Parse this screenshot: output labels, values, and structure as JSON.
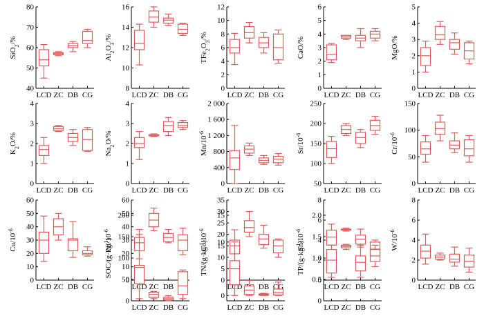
{
  "colors": {
    "box": "#e05a5a",
    "axis": "#000000"
  },
  "categories": [
    "LCD",
    "ZC",
    "DB",
    "CG"
  ],
  "chart_data": [
    {
      "type": "box",
      "ylabel": "SiO2/%",
      "ylim": [
        40,
        80
      ],
      "yticks": [
        "40",
        "50",
        "60",
        "70",
        "80"
      ],
      "boxes": [
        {
          "min": 45,
          "q1": 51,
          "med": 54,
          "q3": 59,
          "max": 61.5
        },
        {
          "min": 56,
          "q1": 56.5,
          "med": 57,
          "q3": 57.5,
          "max": 58
        },
        {
          "min": 58,
          "q1": 60,
          "med": 61,
          "q3": 62,
          "max": 63
        },
        {
          "min": 60,
          "q1": 62,
          "med": 63.5,
          "q3": 68,
          "max": 69
        }
      ]
    },
    {
      "type": "box",
      "ylabel": "Al2O3/%",
      "ylim": [
        8,
        16
      ],
      "yticks": [
        "8",
        "10",
        "12",
        "14",
        "16"
      ],
      "boxes": [
        {
          "min": 10.3,
          "q1": 11.8,
          "med": 12.4,
          "q3": 13.7,
          "max": 14.3
        },
        {
          "min": 14,
          "q1": 14.5,
          "med": 15,
          "q3": 15.6,
          "max": 16
        },
        {
          "min": 14.2,
          "q1": 14.4,
          "med": 14.7,
          "q3": 14.9,
          "max": 15.3
        },
        {
          "min": 13.2,
          "q1": 13.4,
          "med": 13.8,
          "q3": 14.3,
          "max": 14.4
        }
      ]
    },
    {
      "type": "box",
      "ylabel": "TFe2O3/%",
      "ylim": [
        0,
        12
      ],
      "yticks": [
        "0",
        "2",
        "4",
        "6",
        "8",
        "10",
        "12"
      ],
      "boxes": [
        {
          "min": 3.5,
          "q1": 5.2,
          "med": 6,
          "q3": 7.2,
          "max": 8.1
        },
        {
          "min": 6.7,
          "q1": 7.4,
          "med": 8.2,
          "q3": 9.1,
          "max": 9.7
        },
        {
          "min": 5.2,
          "q1": 6,
          "med": 6.7,
          "q3": 7.5,
          "max": 8.2
        },
        {
          "min": 3.7,
          "q1": 4.2,
          "med": 6,
          "q3": 8,
          "max": 8.6
        }
      ]
    },
    {
      "type": "box",
      "ylabel": "CaO/%",
      "ylim": [
        0,
        6
      ],
      "yticks": [
        "0",
        "1",
        "2",
        "3",
        "4",
        "5",
        "6"
      ],
      "boxes": [
        {
          "min": 1.9,
          "q1": 2.1,
          "med": 2.5,
          "q3": 3.2,
          "max": 3.3
        },
        {
          "min": 3.6,
          "q1": 3.7,
          "med": 3.8,
          "q3": 3.9,
          "max": 3.9
        },
        {
          "min": 3,
          "q1": 3.5,
          "med": 3.7,
          "q3": 3.9,
          "max": 4.4
        },
        {
          "min": 3.5,
          "q1": 3.7,
          "med": 4,
          "q3": 4.2,
          "max": 4.4
        }
      ]
    },
    {
      "type": "box",
      "ylabel": "MgO/%",
      "ylim": [
        0,
        5
      ],
      "yticks": [
        "0",
        "1",
        "2",
        "3",
        "4",
        "5"
      ],
      "boxes": [
        {
          "min": 1,
          "q1": 1.4,
          "med": 2,
          "q3": 2.5,
          "max": 2.9
        },
        {
          "min": 2.7,
          "q1": 3,
          "med": 3.3,
          "q3": 3.8,
          "max": 4.1
        },
        {
          "min": 2.1,
          "q1": 2.4,
          "med": 2.8,
          "q3": 3,
          "max": 3.4
        },
        {
          "min": 1.5,
          "q1": 1.8,
          "med": 2.3,
          "q3": 2.8,
          "max": 2.9
        }
      ]
    },
    {
      "type": "box",
      "ylabel": "K2O/%",
      "ylim": [
        0,
        4
      ],
      "yticks": [
        "0",
        "1",
        "2",
        "3",
        "4"
      ],
      "boxes": [
        {
          "min": 1,
          "q1": 1.4,
          "med": 1.7,
          "q3": 1.9,
          "max": 2.3
        },
        {
          "min": 2.6,
          "q1": 2.65,
          "med": 2.75,
          "q3": 2.85,
          "max": 2.9
        },
        {
          "min": 1.9,
          "q1": 2.1,
          "med": 2.3,
          "q3": 2.5,
          "max": 2.7
        },
        {
          "min": 1.6,
          "q1": 1.65,
          "med": 2.2,
          "q3": 2.7,
          "max": 2.8
        }
      ]
    },
    {
      "type": "box",
      "ylabel": "Na2O/%",
      "ylim": [
        0,
        4
      ],
      "yticks": [
        "0",
        "1",
        "2",
        "3",
        "4"
      ],
      "boxes": [
        {
          "min": 1.2,
          "q1": 1.8,
          "med": 2,
          "q3": 2.3,
          "max": 2.6
        },
        {
          "min": 2.35,
          "q1": 2.38,
          "med": 2.4,
          "q3": 2.45,
          "max": 2.48
        },
        {
          "min": 2.4,
          "q1": 2.6,
          "med": 2.9,
          "q3": 3.1,
          "max": 3.3
        },
        {
          "min": 2.7,
          "q1": 2.8,
          "med": 2.9,
          "q3": 3.05,
          "max": 3.15
        }
      ]
    },
    {
      "type": "box",
      "ylabel": "Mn/10^-6",
      "ylim": [
        0,
        2000
      ],
      "yticks": [
        "0",
        "400",
        "800",
        "1 200",
        "1 600",
        "2 000"
      ],
      "boxes": [
        {
          "min": 0,
          "q1": 350,
          "med": 640,
          "q3": 820,
          "max": 1450
        },
        {
          "min": 700,
          "q1": 760,
          "med": 860,
          "q3": 940,
          "max": 1010
        },
        {
          "min": 480,
          "q1": 520,
          "med": 580,
          "q3": 640,
          "max": 700
        },
        {
          "min": 460,
          "q1": 520,
          "med": 610,
          "q3": 680,
          "max": 750
        }
      ]
    },
    {
      "type": "box",
      "ylabel": "Sr/10^-6",
      "ylim": [
        50,
        250
      ],
      "yticks": [
        "50",
        "100",
        "150",
        "200",
        "250"
      ],
      "boxes": [
        {
          "min": 100,
          "q1": 115,
          "med": 137,
          "q3": 155,
          "max": 168
        },
        {
          "min": 170,
          "q1": 175,
          "med": 185,
          "q3": 195,
          "max": 200
        },
        {
          "min": 140,
          "q1": 150,
          "med": 165,
          "q3": 178,
          "max": 185
        },
        {
          "min": 173,
          "q1": 183,
          "med": 195,
          "q3": 208,
          "max": 218
        }
      ]
    },
    {
      "type": "box",
      "ylabel": "Cr/10^-6",
      "ylim": [
        0,
        150
      ],
      "yticks": [
        "0",
        "50",
        "100",
        "150"
      ],
      "boxes": [
        {
          "min": 40,
          "q1": 55,
          "med": 65,
          "q3": 78,
          "max": 90
        },
        {
          "min": 80,
          "q1": 92,
          "med": 103,
          "q3": 115,
          "max": 128
        },
        {
          "min": 58,
          "q1": 65,
          "med": 72,
          "q3": 80,
          "max": 95
        },
        {
          "min": 40,
          "q1": 52,
          "med": 65,
          "q3": 82,
          "max": 90
        }
      ]
    },
    {
      "type": "box",
      "ylabel": "Cu/10^-6",
      "ylim": [
        0,
        60
      ],
      "yticks": [
        "0",
        "10",
        "20",
        "30",
        "40",
        "50",
        "60"
      ],
      "boxes": [
        {
          "min": 14,
          "q1": 20,
          "med": 30,
          "q3": 36,
          "max": 48
        },
        {
          "min": 30,
          "q1": 34,
          "med": 40,
          "q3": 46,
          "max": 50
        },
        {
          "min": 17,
          "q1": 22,
          "med": 30,
          "q3": 31,
          "max": 44
        },
        {
          "min": 18,
          "q1": 19,
          "med": 20,
          "q3": 22,
          "max": 25
        }
      ]
    },
    {
      "type": "box",
      "ylabel": "Ni/10^-6",
      "ylim": [
        0,
        60
      ],
      "yticks": [
        "0",
        "10",
        "20",
        "30",
        "40",
        "50",
        "60"
      ],
      "boxes": [
        {
          "min": 16,
          "q1": 22,
          "med": 28,
          "q3": 32,
          "max": 38
        },
        {
          "min": 37,
          "q1": 40,
          "med": 45,
          "q3": 50,
          "max": 54
        },
        {
          "min": 28,
          "q1": 29,
          "med": 32,
          "q3": 35,
          "max": 38
        },
        {
          "min": 19,
          "q1": 22,
          "med": 30,
          "q3": 34,
          "max": 39
        }
      ]
    },
    {
      "type": "box",
      "ylabel": "Co/10^-6",
      "ylim": [
        0,
        35
      ],
      "yticks": [
        "0",
        "5",
        "10",
        "15",
        "20",
        "25",
        "30",
        "35"
      ],
      "boxes": [
        {
          "min": 8,
          "q1": 11.5,
          "med": 15,
          "q3": 17.5,
          "max": 22
        },
        {
          "min": 19,
          "q1": 21,
          "med": 23,
          "q3": 26,
          "max": 30
        },
        {
          "min": 14,
          "q1": 15.5,
          "med": 18,
          "q3": 20,
          "max": 24
        },
        {
          "min": 10,
          "q1": 12,
          "med": 15,
          "q3": 17.5,
          "max": 18
        }
      ]
    },
    {
      "type": "box",
      "ylabel": "Sn/10^-6",
      "ylim": [
        0,
        8
      ],
      "yticks": [
        "0",
        "2",
        "4",
        "6",
        "8"
      ],
      "boxes": [
        {
          "min": 2.6,
          "q1": 3.5,
          "med": 4.3,
          "q3": 5,
          "max": 5.6
        },
        {
          "min": 4.9,
          "q1": 5,
          "med": 5.05,
          "q3": 5.1,
          "max": 5.2
        },
        {
          "min": 3.3,
          "q1": 3.6,
          "med": 4.1,
          "q3": 4.5,
          "max": 5.1
        },
        {
          "min": 2.2,
          "q1": 2.5,
          "med": 3.1,
          "q3": 3.8,
          "max": 4
        }
      ]
    },
    {
      "type": "box",
      "ylabel": "W/10^-6",
      "ylim": [
        0,
        8
      ],
      "yticks": [
        "0",
        "2",
        "4",
        "6",
        "8"
      ],
      "boxes": [
        {
          "min": 1.6,
          "q1": 2.2,
          "med": 2.9,
          "q3": 3.5,
          "max": 4.6
        },
        {
          "min": 2,
          "q1": 2.1,
          "med": 2.3,
          "q3": 2.5,
          "max": 2.7
        },
        {
          "min": 1.4,
          "q1": 1.8,
          "med": 2.1,
          "q3": 2.6,
          "max": 3.3
        },
        {
          "min": 0.8,
          "q1": 1.3,
          "med": 1.9,
          "q3": 2.5,
          "max": 3.2
        }
      ]
    },
    {
      "type": "box",
      "ylabel": "SOC/(g·kg^-1)",
      "ylim": [
        0,
        200
      ],
      "yticks": [
        "0",
        "50",
        "100",
        "150",
        "200"
      ],
      "boxes": [
        {
          "min": 5,
          "q1": 40,
          "med": 78,
          "q3": 83,
          "max": 155
        },
        {
          "min": 5,
          "q1": 8,
          "med": 15,
          "q3": 20,
          "max": 22
        },
        {
          "min": 0,
          "q1": 2,
          "med": 5,
          "q3": 8,
          "max": 12
        },
        {
          "min": 5,
          "q1": 15,
          "med": 35,
          "q3": 68,
          "max": 72
        }
      ]
    },
    {
      "type": "box",
      "ylabel": "TN/(g·kg^-1)",
      "ylim": [
        -1,
        15
      ],
      "yticks": [
        "0",
        "5",
        "10",
        "15"
      ],
      "boxes": [
        {
          "min": 0,
          "q1": 2,
          "med": 5,
          "q3": 6.5,
          "max": 10
        },
        {
          "min": 0,
          "q1": 0.2,
          "med": 1,
          "q3": 1.8,
          "max": 2.8
        },
        {
          "min": 0,
          "q1": 0.05,
          "med": 0.15,
          "q3": 0.3,
          "max": 0.4
        },
        {
          "min": 0,
          "q1": 0.1,
          "med": 0.5,
          "q3": 1.2,
          "max": 2.5
        }
      ]
    },
    {
      "type": "box",
      "ylabel": "TP/(g·kg^-1)",
      "ylim": [
        0,
        2
      ],
      "yticks": [
        "0",
        "0.5",
        "1.0",
        "1.5",
        "2.0"
      ],
      "boxes": [
        {
          "min": 0.55,
          "q1": 0.65,
          "med": 0.95,
          "q3": 1.2,
          "max": 1.3
        },
        {
          "min": 1.2,
          "q1": 1.24,
          "med": 1.27,
          "q3": 1.3,
          "max": 1.32
        },
        {
          "min": 0.55,
          "q1": 0.7,
          "med": 0.9,
          "q3": 1.05,
          "max": 1.3
        },
        {
          "min": 0.8,
          "q1": 0.92,
          "med": 1.05,
          "q3": 1.2,
          "max": 1.3
        }
      ]
    }
  ]
}
